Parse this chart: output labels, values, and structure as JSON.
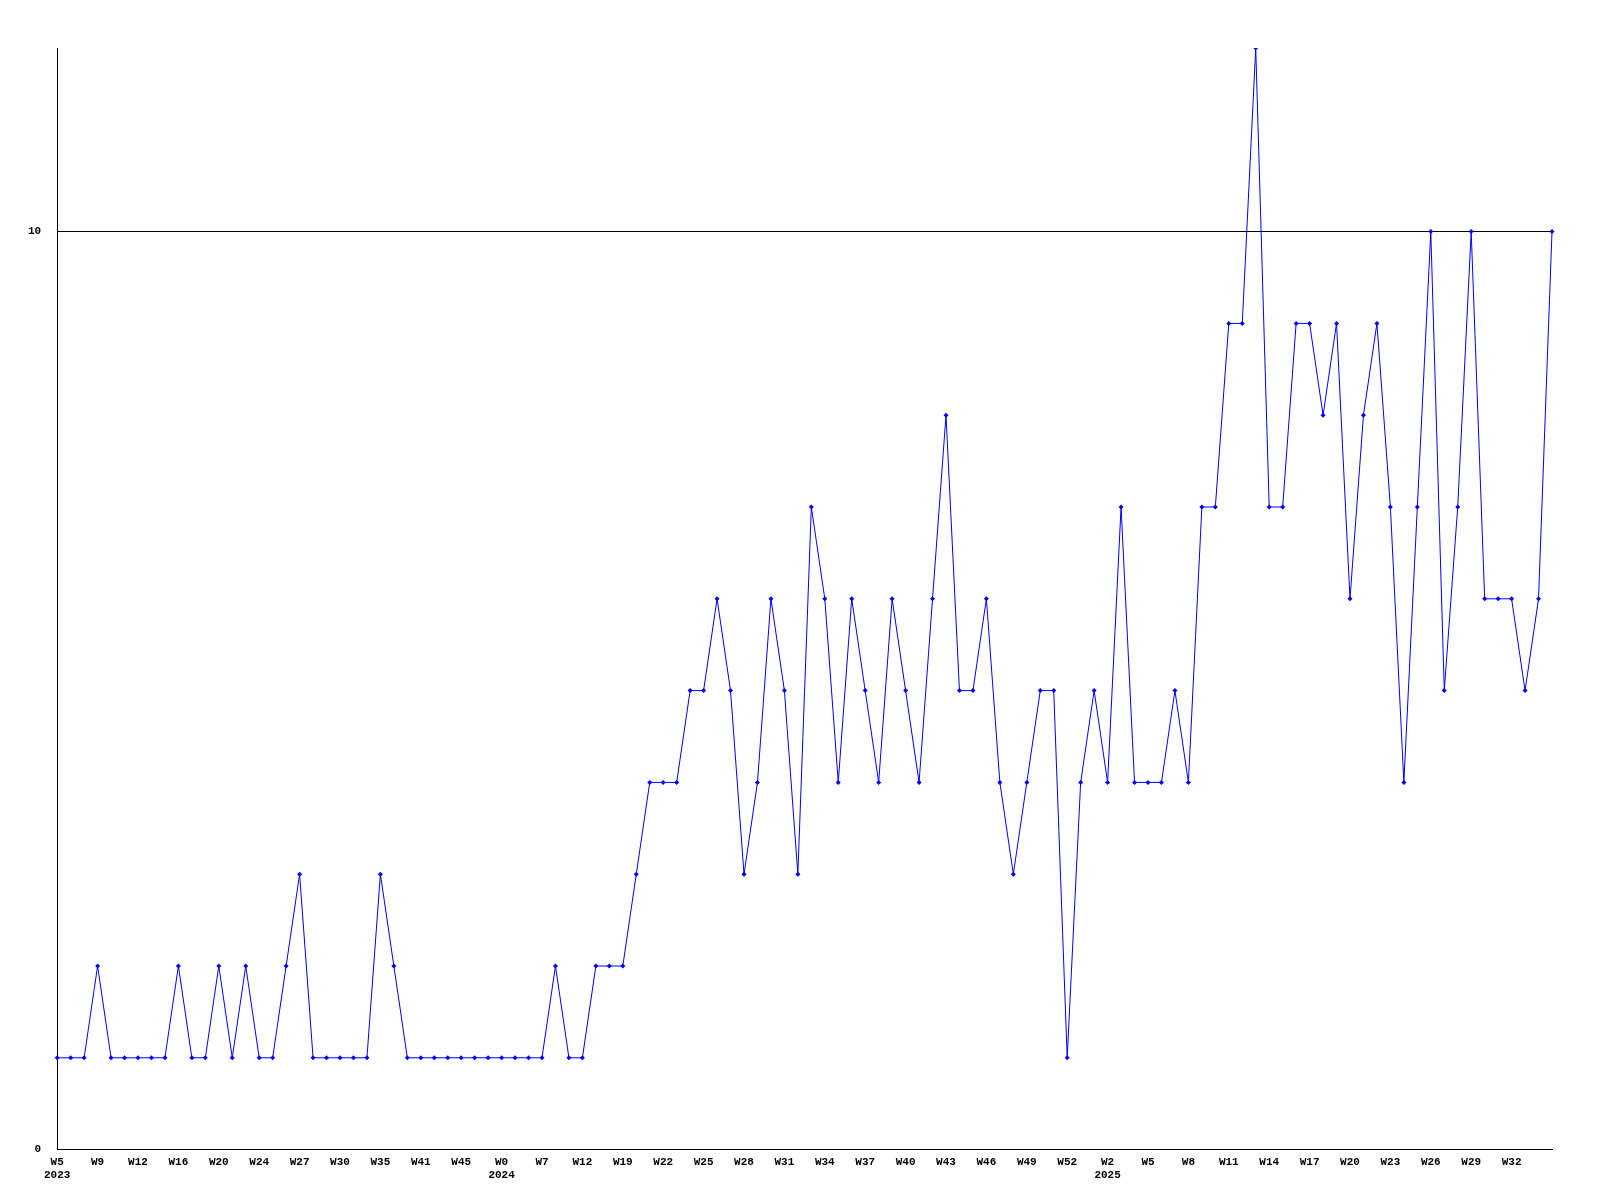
{
  "chart_data": {
    "type": "line",
    "categories": [
      "W5\n2023",
      null,
      null,
      "W9",
      null,
      null,
      "W12",
      null,
      null,
      "W16",
      null,
      null,
      "W20",
      null,
      null,
      "W24",
      null,
      null,
      "W27",
      null,
      null,
      "W30",
      null,
      null,
      "W35",
      null,
      null,
      "W41",
      null,
      null,
      "W45",
      null,
      null,
      "W0\n2024",
      null,
      null,
      "W7",
      null,
      null,
      "W12",
      null,
      null,
      "W19",
      null,
      null,
      "W22",
      null,
      null,
      "W25",
      null,
      null,
      "W28",
      null,
      null,
      "W31",
      null,
      null,
      "W34",
      null,
      null,
      "W37",
      null,
      null,
      "W40",
      null,
      null,
      "W43",
      null,
      null,
      "W46",
      null,
      null,
      "W49",
      null,
      null,
      "W52",
      null,
      null,
      "W2\n2025",
      null,
      null,
      "W5",
      null,
      null,
      "W8",
      null,
      null,
      "W11",
      null,
      null,
      "W14",
      null,
      null,
      "W17",
      null,
      null,
      "W20",
      null,
      null,
      "W23",
      null,
      null,
      "W26",
      null,
      null,
      "W29",
      null,
      null,
      "W32",
      null,
      null,
      null
    ],
    "series": [
      {
        "color": "#0000ff",
        "values": [
          1,
          1,
          1,
          2,
          1,
          1,
          1,
          1,
          1,
          2,
          1,
          1,
          2,
          1,
          2,
          1,
          1,
          2,
          3,
          1,
          1,
          1,
          1,
          1,
          3,
          2,
          1,
          1,
          1,
          1,
          1,
          1,
          1,
          1,
          1,
          1,
          1,
          2,
          1,
          1,
          2,
          2,
          2,
          3,
          4,
          4,
          4,
          5,
          5,
          6,
          5,
          3,
          4,
          6,
          5,
          3,
          7,
          6,
          4,
          6,
          5,
          4,
          6,
          5,
          4,
          6,
          8,
          5,
          5,
          6,
          4,
          3,
          4,
          5,
          5,
          1,
          4,
          5,
          4,
          7,
          4,
          4,
          4,
          5,
          4,
          7,
          7,
          9,
          9,
          12,
          7,
          7,
          9,
          9,
          8,
          9,
          6,
          8,
          9,
          7,
          4,
          7,
          10,
          5,
          7,
          10,
          6,
          6,
          6,
          5,
          6,
          10
        ]
      }
    ],
    "ylim": [
      0,
      12
    ],
    "yticks": [
      0,
      10
    ],
    "grid": "y",
    "legend": false,
    "marker": "diamond",
    "line_style": "solid"
  }
}
